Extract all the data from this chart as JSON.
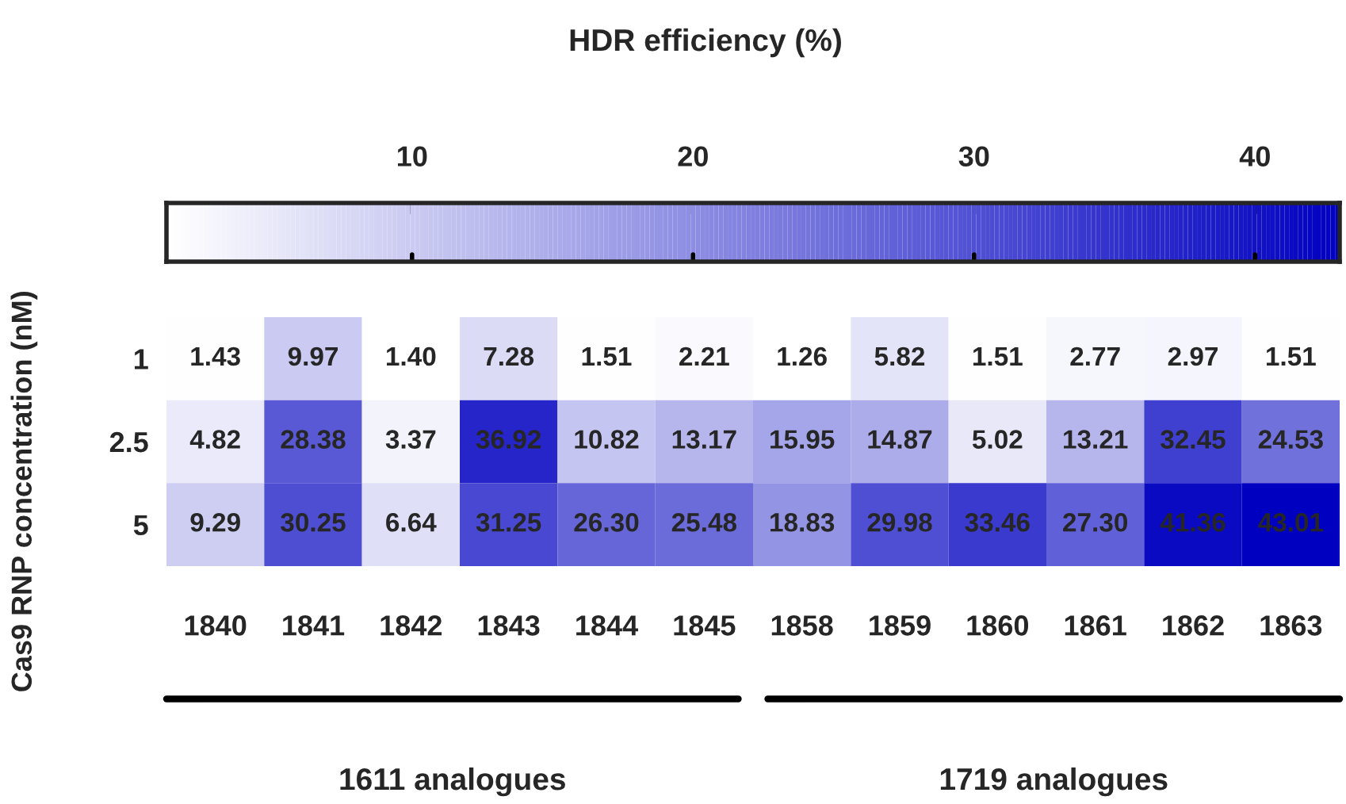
{
  "chart_data": {
    "type": "heatmap",
    "title": "HDR efficiency (%)",
    "ylabel": "Cas9 RNP concentration (nM)",
    "categories": [
      "1840",
      "1841",
      "1842",
      "1843",
      "1844",
      "1845",
      "1858",
      "1859",
      "1860",
      "1861",
      "1862",
      "1863"
    ],
    "y_categories": [
      "1",
      "2.5",
      "5"
    ],
    "cells": [
      [
        1.43,
        9.97,
        1.4,
        7.28,
        1.51,
        2.21,
        1.26,
        5.82,
        1.51,
        2.77,
        2.97,
        1.51
      ],
      [
        4.82,
        28.38,
        3.37,
        36.92,
        10.82,
        13.17,
        15.95,
        14.87,
        5.02,
        13.21,
        32.45,
        24.53
      ],
      [
        9.29,
        30.25,
        6.64,
        31.25,
        26.3,
        25.48,
        18.83,
        29.98,
        33.46,
        27.3,
        41.36,
        43.01
      ]
    ],
    "cell_labels": [
      [
        "1.43",
        "9.97",
        "1.40",
        "7.28",
        "1.51",
        "2.21",
        "1.26",
        "5.82",
        "1.51",
        "2.77",
        "2.97",
        "1.51"
      ],
      [
        "4.82",
        "28.38",
        "3.37",
        "36.92",
        "10.82",
        "13.17",
        "15.95",
        "14.87",
        "5.02",
        "13.21",
        "32.45",
        "24.53"
      ],
      [
        "9.29",
        "30.25",
        "6.64",
        "31.25",
        "26.30",
        "25.48",
        "18.83",
        "29.98",
        "33.46",
        "27.30",
        "41.36",
        "43.01"
      ]
    ],
    "clim": [
      1.26,
      43.01
    ],
    "cticks": [
      10,
      20,
      30,
      40
    ],
    "colors": [
      "#ffffff",
      "#0000c0"
    ],
    "annotations": [
      "1611 analogues",
      "1719 analogues"
    ]
  }
}
